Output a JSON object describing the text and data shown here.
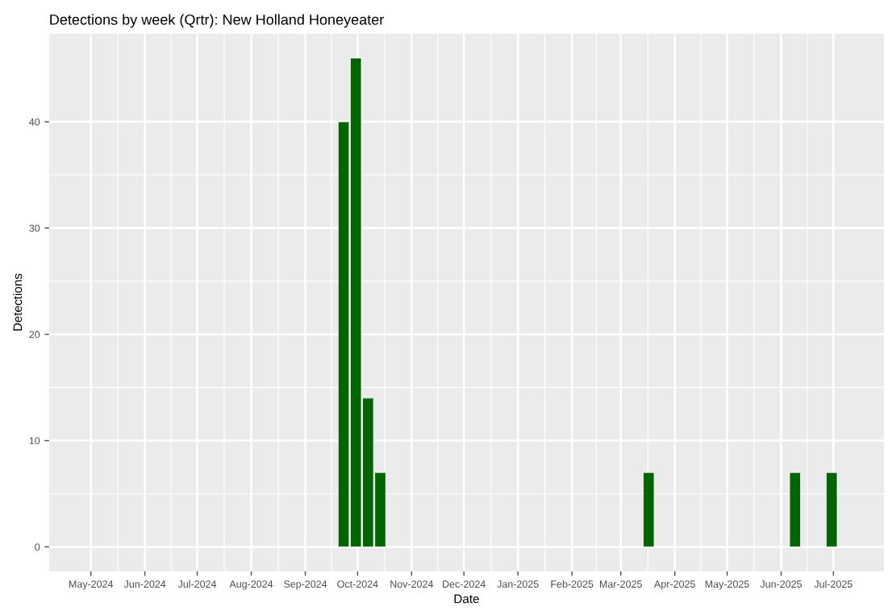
{
  "chart_data": {
    "type": "bar",
    "title": "Detections by week (Qrtr): New Holland Honeyeater",
    "xlabel": "Date",
    "ylabel": "Detections",
    "x": [
      "2024-09-23",
      "2024-09-30",
      "2024-10-07",
      "2024-10-14",
      "2025-03-17",
      "2025-06-09",
      "2025-06-30"
    ],
    "values": [
      40,
      46,
      14,
      7,
      7,
      7,
      7
    ],
    "color": "#006400",
    "xlim": [
      "2024-04-07",
      "2025-07-30"
    ],
    "xticks": [
      {
        "value": "2024-05-01",
        "label": "May-2024"
      },
      {
        "value": "2024-06-01",
        "label": "Jun-2024"
      },
      {
        "value": "2024-07-01",
        "label": "Jul-2024"
      },
      {
        "value": "2024-08-01",
        "label": "Aug-2024"
      },
      {
        "value": "2024-09-01",
        "label": "Sep-2024"
      },
      {
        "value": "2024-10-01",
        "label": "Oct-2024"
      },
      {
        "value": "2024-11-01",
        "label": "Nov-2024"
      },
      {
        "value": "2024-12-01",
        "label": "Dec-2024"
      },
      {
        "value": "2025-01-01",
        "label": "Jan-2025"
      },
      {
        "value": "2025-02-01",
        "label": "Feb-2025"
      },
      {
        "value": "2025-03-01",
        "label": "Mar-2025"
      },
      {
        "value": "2025-04-01",
        "label": "Apr-2025"
      },
      {
        "value": "2025-05-01",
        "label": "May-2025"
      },
      {
        "value": "2025-06-01",
        "label": "Jun-2025"
      },
      {
        "value": "2025-07-01",
        "label": "Jul-2025"
      }
    ],
    "ylim": [
      -2.3,
      48.3
    ],
    "yticks": [
      0,
      10,
      20,
      30,
      40
    ],
    "grid": true
  }
}
